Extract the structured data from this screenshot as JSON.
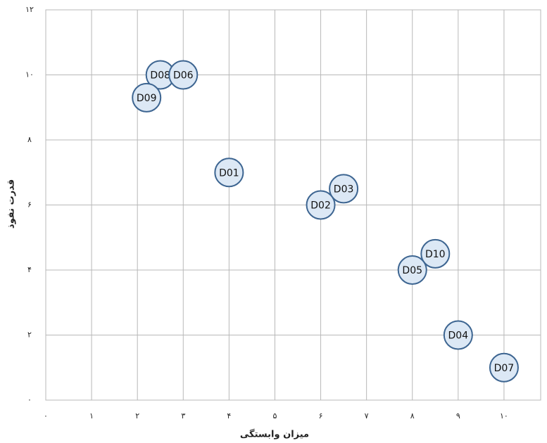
{
  "chart_data": {
    "type": "scatter",
    "x_label": "میزان وابستگی",
    "y_label": "قدرت نفوذ",
    "labels": [
      "D08",
      "D06",
      "D09",
      "D01",
      "D03",
      "D02",
      "D10",
      "D05",
      "D04",
      "D07"
    ],
    "x": [
      2.5,
      3,
      2.2,
      4,
      6.5,
      6,
      8.5,
      8,
      9,
      10
    ],
    "values": [
      10,
      10,
      9.3,
      7,
      6.5,
      6,
      4.5,
      4,
      2,
      1
    ],
    "color": "#dce8f5",
    "xlim": [
      0,
      10.8
    ],
    "ylim": [
      0,
      12
    ],
    "xticks": [
      {
        "value": 0,
        "label": "۰"
      },
      {
        "value": 1,
        "label": "۱"
      },
      {
        "value": 2,
        "label": "۲"
      },
      {
        "value": 3,
        "label": "۳"
      },
      {
        "value": 4,
        "label": "۴"
      },
      {
        "value": 5,
        "label": "۵"
      },
      {
        "value": 6,
        "label": "۶"
      },
      {
        "value": 7,
        "label": "۷"
      },
      {
        "value": 8,
        "label": "۸"
      },
      {
        "value": 9,
        "label": "۹"
      },
      {
        "value": 10,
        "label": "۱۰"
      }
    ],
    "yticks": [
      {
        "value": 0,
        "label": "۰"
      },
      {
        "value": 2,
        "label": "۲"
      },
      {
        "value": 4,
        "label": "۴"
      },
      {
        "value": 6,
        "label": "۶"
      },
      {
        "value": 8,
        "label": "۸"
      },
      {
        "value": 10,
        "label": "۱۰"
      },
      {
        "value": 12,
        "label": "۱۲"
      }
    ],
    "grid": true
  }
}
